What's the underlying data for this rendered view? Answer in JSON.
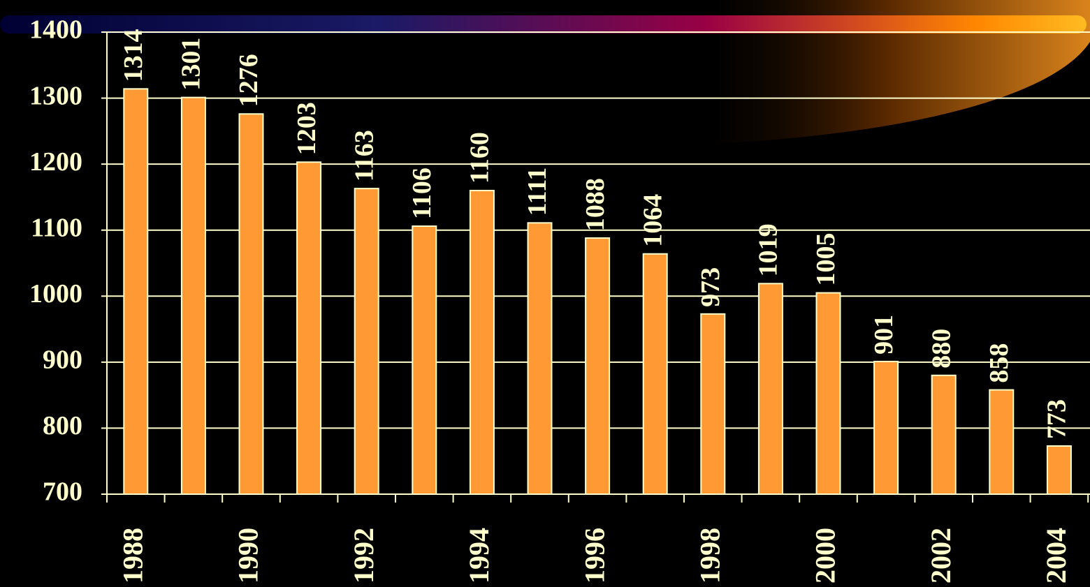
{
  "chart_data": {
    "type": "bar",
    "categories": [
      "1988",
      null,
      "1990",
      null,
      "1992",
      null,
      "1994",
      null,
      "1996",
      null,
      "1998",
      null,
      "2000",
      null,
      "2002",
      null,
      "2004"
    ],
    "values": [
      1314,
      1301,
      1276,
      1203,
      1163,
      1106,
      1160,
      1111,
      1088,
      1064,
      973,
      1019,
      1005,
      901,
      880,
      858,
      773
    ],
    "color": "#ff9933",
    "ylim": [
      700,
      1400
    ],
    "yticks": [
      700,
      800,
      900,
      1000,
      1100,
      1200,
      1300,
      1400
    ],
    "grid": true
  }
}
